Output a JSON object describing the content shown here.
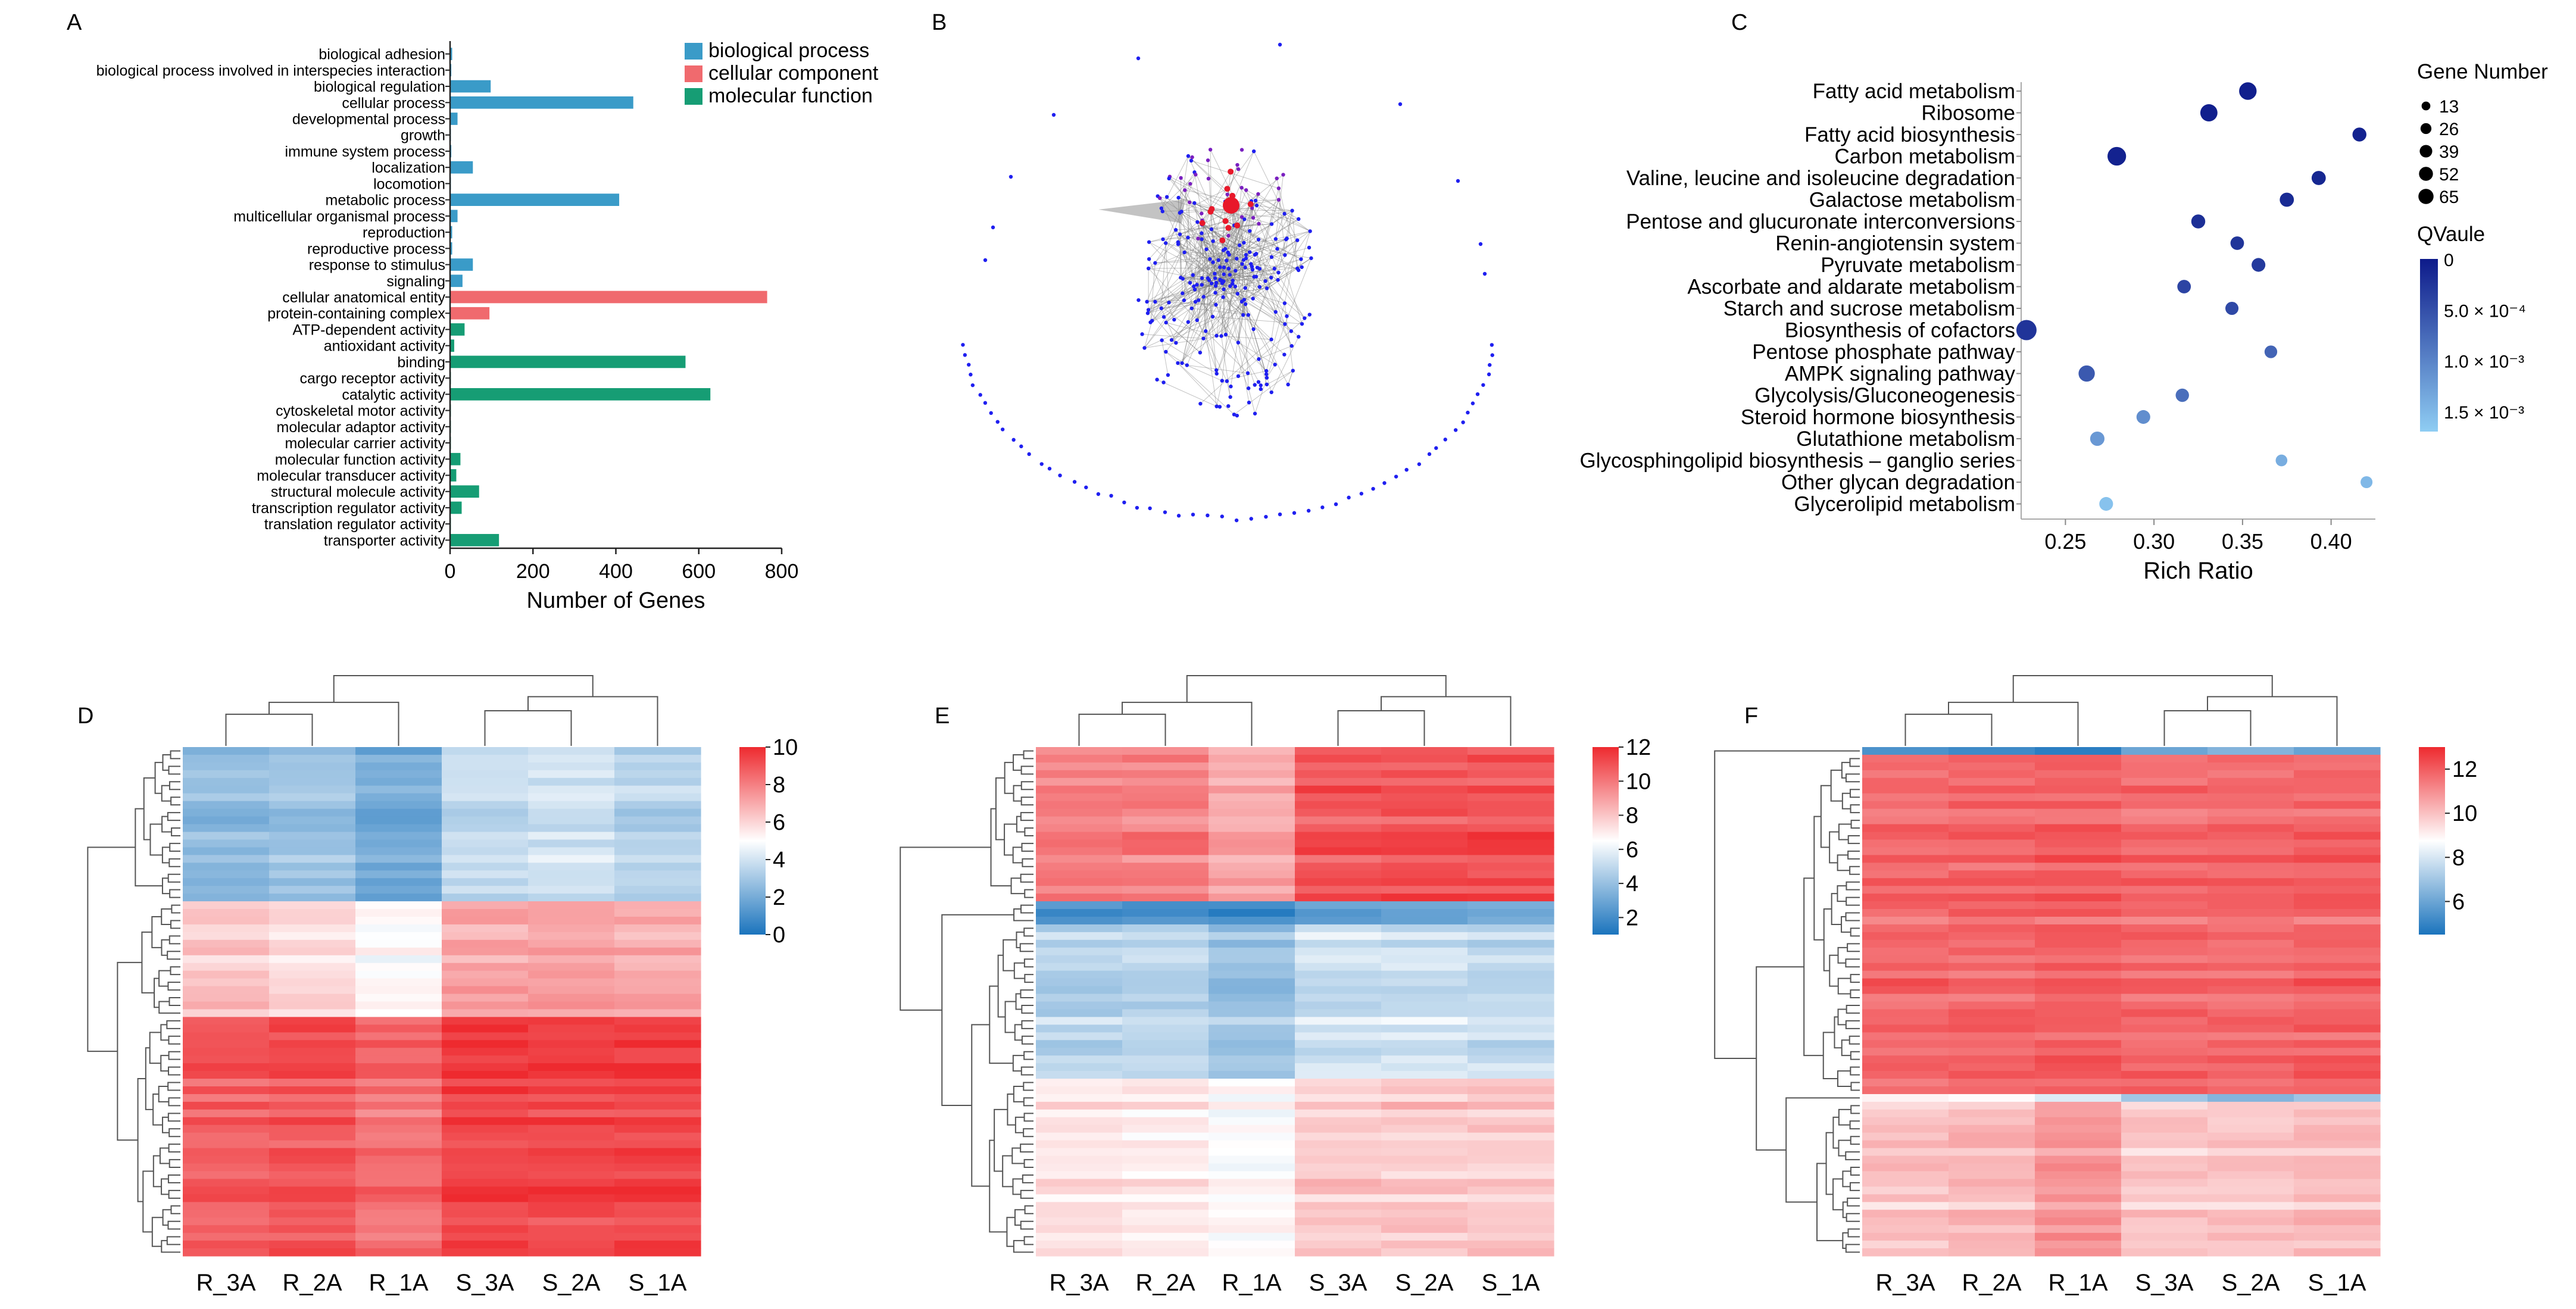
{
  "panels": {
    "a": "A",
    "b": "B",
    "c": "C",
    "d": "D",
    "e": "E",
    "f": "F"
  },
  "colors": {
    "biological_process": "#3A9BC8",
    "cellular_component": "#F06A6E",
    "molecular_function": "#169D74",
    "network_node": "#1f1ff0",
    "network_hub": "#e8182a",
    "network_edge": "#7a7a7a",
    "heat_low": "#1b74bd",
    "heat_mid": "#ffffff",
    "heat_high": "#ee2a2f",
    "bubble_low": "#0d1a8a",
    "bubble_high": "#8fcdf3"
  },
  "chart_data": [
    {
      "id": "A",
      "type": "bar",
      "orientation": "horizontal",
      "xlabel": "Number of Genes",
      "xlim": [
        0,
        800
      ],
      "xticks": [
        "0",
        "200",
        "400",
        "600",
        "800"
      ],
      "legend": [
        "biological process",
        "cellular component",
        "molecular function"
      ],
      "categories": [
        {
          "term": "biological adhesion",
          "group": "biological process",
          "value": 5
        },
        {
          "term": "biological process involved in interspecies interaction",
          "group": "biological process",
          "value": 3
        },
        {
          "term": "biological regulation",
          "group": "biological process",
          "value": 98
        },
        {
          "term": "cellular process",
          "group": "biological process",
          "value": 442
        },
        {
          "term": "developmental process",
          "group": "biological process",
          "value": 18
        },
        {
          "term": "growth",
          "group": "biological process",
          "value": 2
        },
        {
          "term": "immune system process",
          "group": "biological process",
          "value": 3
        },
        {
          "term": "localization",
          "group": "biological process",
          "value": 55
        },
        {
          "term": "locomotion",
          "group": "biological process",
          "value": 2
        },
        {
          "term": "metabolic process",
          "group": "biological process",
          "value": 408
        },
        {
          "term": "multicellular organismal process",
          "group": "biological process",
          "value": 18
        },
        {
          "term": "reproduction",
          "group": "biological process",
          "value": 5
        },
        {
          "term": "reproductive process",
          "group": "biological process",
          "value": 5
        },
        {
          "term": "response to stimulus",
          "group": "biological process",
          "value": 55
        },
        {
          "term": "signaling",
          "group": "biological process",
          "value": 30
        },
        {
          "term": "cellular anatomical entity",
          "group": "cellular component",
          "value": 765
        },
        {
          "term": "protein-containing complex",
          "group": "cellular component",
          "value": 95
        },
        {
          "term": "ATP-dependent activity",
          "group": "molecular function",
          "value": 35
        },
        {
          "term": "antioxidant activity",
          "group": "molecular function",
          "value": 10
        },
        {
          "term": "binding",
          "group": "molecular function",
          "value": 568
        },
        {
          "term": "cargo receptor activity",
          "group": "molecular function",
          "value": 2
        },
        {
          "term": "catalytic activity",
          "group": "molecular function",
          "value": 628
        },
        {
          "term": "cytoskeletal motor activity",
          "group": "molecular function",
          "value": 2
        },
        {
          "term": "molecular adaptor activity",
          "group": "molecular function",
          "value": 2
        },
        {
          "term": "molecular carrier activity",
          "group": "molecular function",
          "value": 2
        },
        {
          "term": "molecular function activity",
          "group": "molecular function",
          "value": 25
        },
        {
          "term": "molecular transducer activity",
          "group": "molecular function",
          "value": 15
        },
        {
          "term": "structural molecule activity",
          "group": "molecular function",
          "value": 70
        },
        {
          "term": "transcription regulator activity",
          "group": "molecular function",
          "value": 28
        },
        {
          "term": "translation regulator activity",
          "group": "molecular function",
          "value": 2
        },
        {
          "term": "transporter activity",
          "group": "molecular function",
          "value": 118
        }
      ]
    },
    {
      "id": "B",
      "type": "network",
      "description_level": "gene co-expression network (dense core cluster with peripheral isolated nodes)"
    },
    {
      "id": "C",
      "type": "scatter",
      "subtype": "bubble",
      "xlabel": "Rich Ratio",
      "xlim": [
        0.225,
        0.425
      ],
      "xticks": [
        0.25,
        0.3,
        0.35,
        0.4
      ],
      "xtick_labels": [
        "0.25",
        "0.30",
        "0.35",
        "0.40"
      ],
      "size_legend_title": "Gene Number",
      "size_legend": [
        "13",
        "26",
        "39",
        "52",
        "65"
      ],
      "size_legend_values": [
        13,
        26,
        39,
        52,
        65
      ],
      "color_legend_title": "QVaule",
      "color_legend_ticks": [
        "0",
        "5.0 × 10⁻⁴",
        "1.0 × 10⁻³",
        "1.5 × 10⁻³"
      ],
      "color_legend_values": [
        0,
        0.0005,
        0.001,
        0.0015
      ],
      "qvalue_range": [
        0,
        0.0017
      ],
      "points": [
        {
          "pathway": "Fatty acid metabolism",
          "ratio": 0.353,
          "genes": 44,
          "q": 5e-05
        },
        {
          "pathway": "Ribosome",
          "ratio": 0.331,
          "genes": 42,
          "q": 5e-05
        },
        {
          "pathway": "Fatty acid biosynthesis",
          "ratio": 0.416,
          "genes": 23,
          "q": 8e-05
        },
        {
          "pathway": "Carbon metabolism",
          "ratio": 0.279,
          "genes": 52,
          "q": 8e-05
        },
        {
          "pathway": "Valine, leucine and isoleucine degradation",
          "ratio": 0.393,
          "genes": 24,
          "q": 0.00012
        },
        {
          "pathway": "Galactose metabolism",
          "ratio": 0.375,
          "genes": 24,
          "q": 0.00016
        },
        {
          "pathway": "Pentose and glucuronate interconversions",
          "ratio": 0.325,
          "genes": 23,
          "q": 0.0002
        },
        {
          "pathway": "Renin-angiotensin system",
          "ratio": 0.347,
          "genes": 21,
          "q": 0.00025
        },
        {
          "pathway": "Pyruvate metabolism",
          "ratio": 0.359,
          "genes": 22,
          "q": 0.0003
        },
        {
          "pathway": "Ascorbate and aldarate metabolism",
          "ratio": 0.317,
          "genes": 21,
          "q": 0.0004
        },
        {
          "pathway": "Starch and sucrose metabolism",
          "ratio": 0.344,
          "genes": 19,
          "q": 0.00045
        },
        {
          "pathway": "Biosynthesis of cofactors",
          "ratio": 0.228,
          "genes": 65,
          "q": 0.00025
        },
        {
          "pathway": "Pentose phosphate pathway",
          "ratio": 0.366,
          "genes": 17,
          "q": 0.0007
        },
        {
          "pathway": "AMPK signaling pathway",
          "ratio": 0.262,
          "genes": 36,
          "q": 0.0006
        },
        {
          "pathway": "Glycolysis/Gluconeogenesis",
          "ratio": 0.316,
          "genes": 20,
          "q": 0.0008
        },
        {
          "pathway": "Steroid hormone biosynthesis",
          "ratio": 0.294,
          "genes": 22,
          "q": 0.0011
        },
        {
          "pathway": "Glutathione metabolism",
          "ratio": 0.268,
          "genes": 25,
          "q": 0.0012
        },
        {
          "pathway": "Glycosphingolipid biosynthesis – ganglio series",
          "ratio": 0.372,
          "genes": 13,
          "q": 0.0014
        },
        {
          "pathway": "Other glycan degradation",
          "ratio": 0.42,
          "genes": 14,
          "q": 0.0015
        },
        {
          "pathway": "Glycerolipid metabolism",
          "ratio": 0.273,
          "genes": 22,
          "q": 0.0016
        }
      ]
    },
    {
      "id": "D",
      "type": "heatmap",
      "columns": [
        "R_3A",
        "R_2A",
        "R_1A",
        "S_3A",
        "S_2A",
        "S_1A"
      ],
      "colorbar_range": [
        0,
        10
      ],
      "colorbar_ticks": [
        "10",
        "8",
        "6",
        "4",
        "2",
        "0"
      ],
      "rows": 66,
      "row_blocks": [
        {
          "rows": 20,
          "mean": [
            2.6,
            2.9,
            2.0,
            3.8,
            4.0,
            3.5
          ]
        },
        {
          "rows": 15,
          "mean": [
            6.2,
            5.8,
            5.0,
            7.1,
            7.2,
            6.9
          ]
        },
        {
          "rows": 31,
          "mean": [
            8.8,
            9.0,
            8.4,
            9.4,
            9.3,
            9.4
          ]
        }
      ]
    },
    {
      "id": "E",
      "type": "heatmap",
      "columns": [
        "R_3A",
        "R_2A",
        "R_1A",
        "S_3A",
        "S_2A",
        "S_1A"
      ],
      "colorbar_range": [
        1,
        12
      ],
      "colorbar_ticks": [
        "12",
        "10",
        "8",
        "6",
        "4",
        "2"
      ],
      "rows": 66,
      "row_blocks": [
        {
          "rows": 20,
          "mean": [
            9.8,
            9.7,
            8.7,
            10.9,
            11.0,
            11.0
          ]
        },
        {
          "rows": 3,
          "mean": [
            2.2,
            2.0,
            1.8,
            2.7,
            2.9,
            3.0
          ]
        },
        {
          "rows": 20,
          "mean": [
            4.9,
            5.0,
            4.2,
            5.4,
            5.5,
            5.2
          ]
        },
        {
          "rows": 23,
          "mean": [
            7.3,
            7.2,
            6.7,
            8.0,
            8.0,
            8.1
          ]
        }
      ]
    },
    {
      "id": "F",
      "type": "heatmap",
      "columns": [
        "R_3A",
        "R_2A",
        "R_1A",
        "S_3A",
        "S_2A",
        "S_1A"
      ],
      "colorbar_range": [
        4.5,
        13
      ],
      "colorbar_ticks": [
        "12",
        "10",
        "8",
        "6"
      ],
      "rows": 66,
      "row_blocks": [
        {
          "rows": 1,
          "mean": [
            5.6,
            5.6,
            5.3,
            6.5,
            6.8,
            6.3
          ]
        },
        {
          "rows": 44,
          "mean": [
            11.7,
            11.8,
            11.9,
            11.7,
            11.7,
            11.8
          ]
        },
        {
          "rows": 1,
          "mean": [
            9.2,
            9.0,
            8.2,
            7.0,
            6.9,
            7.1
          ]
        },
        {
          "rows": 20,
          "mean": [
            9.8,
            10.0,
            10.7,
            9.7,
            9.7,
            9.9
          ]
        }
      ]
    }
  ]
}
